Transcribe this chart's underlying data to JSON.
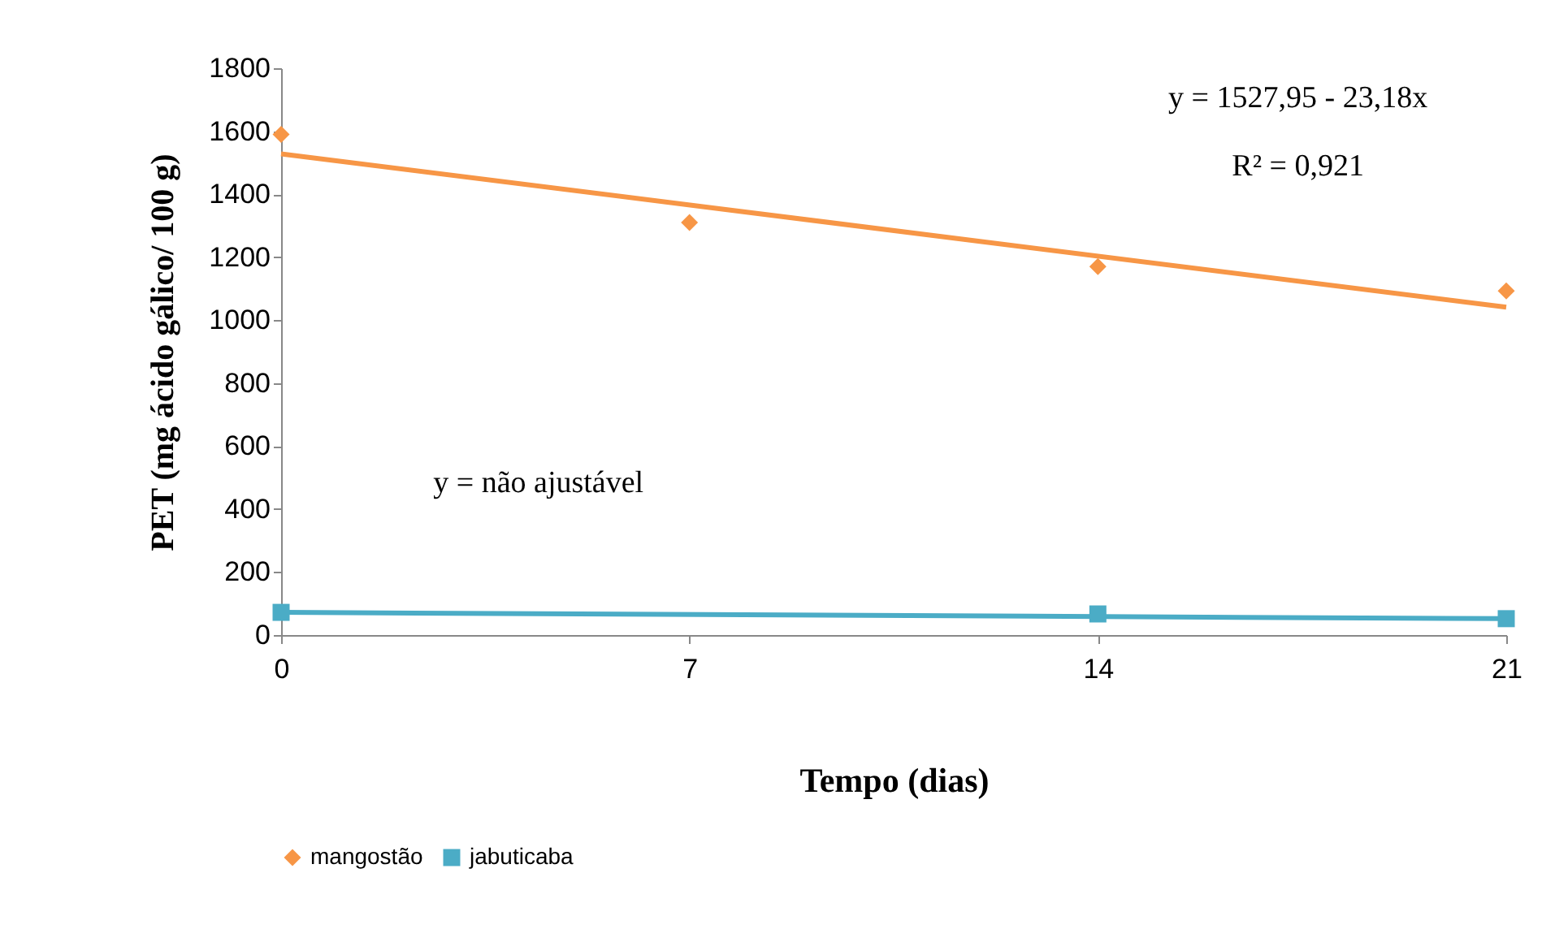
{
  "chart_data": {
    "type": "scatter",
    "xlabel": "Tempo (dias)",
    "ylabel": "PET (mg ácido gálico/ 100 g)",
    "xlim": [
      0,
      21
    ],
    "xticks": [
      0,
      7,
      14,
      21
    ],
    "ylim": [
      0,
      1800
    ],
    "yticks": [
      0,
      200,
      400,
      600,
      800,
      1000,
      1200,
      1400,
      1600,
      1800
    ],
    "grid": false,
    "legend": "bottom",
    "series": [
      {
        "name": "mangostão",
        "color": "#f79646",
        "marker": "diamond",
        "x": [
          0,
          7,
          14,
          21
        ],
        "values": [
          1590,
          1310,
          1170,
          1093
        ]
      },
      {
        "name": "jabuticaba",
        "color": "#4bacc6",
        "marker": "square",
        "x": [
          0,
          14,
          21
        ],
        "values": [
          72,
          67,
          52
        ]
      },
      {
        "type": "line",
        "color": "#f79646",
        "x": [
          0,
          21
        ],
        "values": [
          1528,
          1041
        ]
      },
      {
        "type": "line",
        "color": "#4bacc6",
        "x": [
          0,
          21
        ],
        "values": [
          72,
          52
        ]
      }
    ],
    "annotations": [
      "y = 1527,95 - 23,18x",
      "R² = 0,921",
      "y = não ajustável"
    ]
  }
}
